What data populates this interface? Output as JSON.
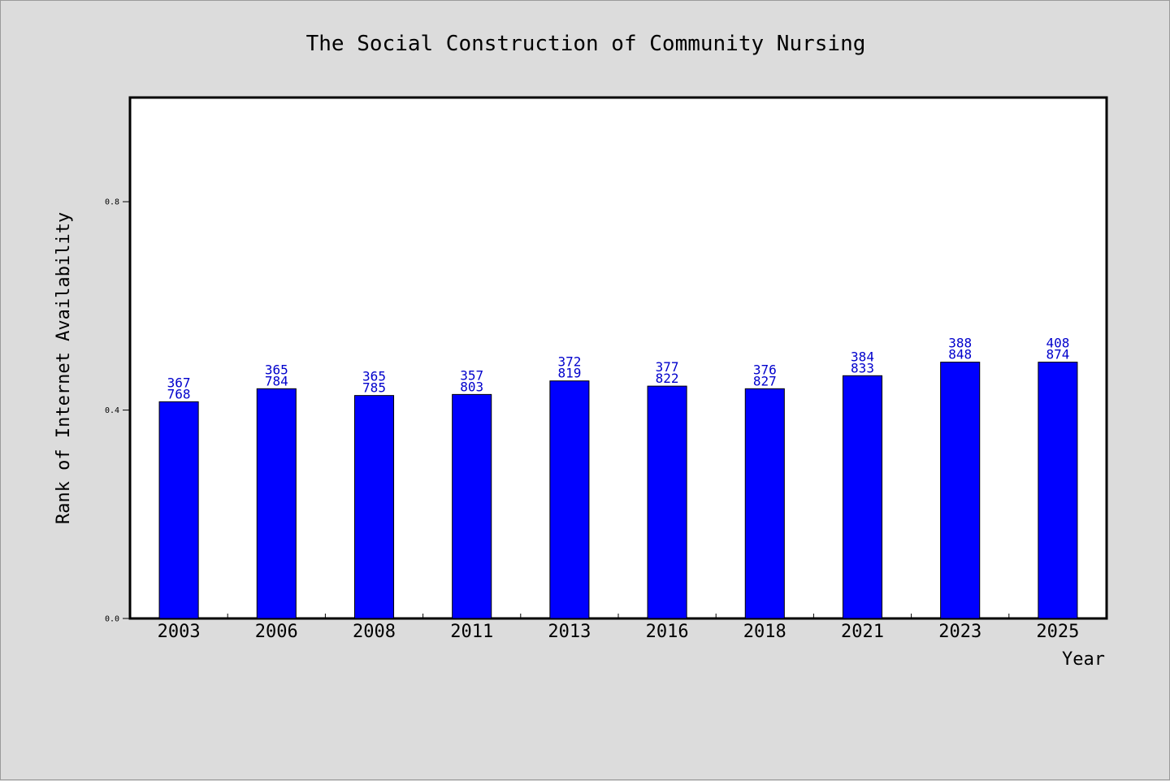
{
  "chart_data": {
    "type": "bar",
    "title": "The Social Construction of Community Nursing",
    "xlabel": "Year",
    "ylabel": "Rank of Internet Availability",
    "categories": [
      "2003",
      "2006",
      "2008",
      "2011",
      "2013",
      "2016",
      "2018",
      "2021",
      "2023",
      "2025"
    ],
    "values": [
      0.416,
      0.441,
      0.428,
      0.43,
      0.456,
      0.446,
      0.441,
      0.466,
      0.492,
      0.492
    ],
    "data_labels": [
      [
        "367",
        "768"
      ],
      [
        "365",
        "784"
      ],
      [
        "365",
        "785"
      ],
      [
        "357",
        "803"
      ],
      [
        "372",
        "819"
      ],
      [
        "377",
        "822"
      ],
      [
        "376",
        "827"
      ],
      [
        "384",
        "833"
      ],
      [
        "388",
        "848"
      ],
      [
        "408",
        "874"
      ]
    ],
    "yticks": [
      "0.0",
      "0.4",
      "0.8"
    ],
    "ylim": [
      0,
      1.0
    ],
    "grid": false,
    "legend": "none",
    "colors": {
      "bar": "#0000ff",
      "bar_edge": "#000000",
      "label": "#0000cc",
      "plot_bg": "#ffffff",
      "page_bg": "#dcdcdc"
    }
  }
}
